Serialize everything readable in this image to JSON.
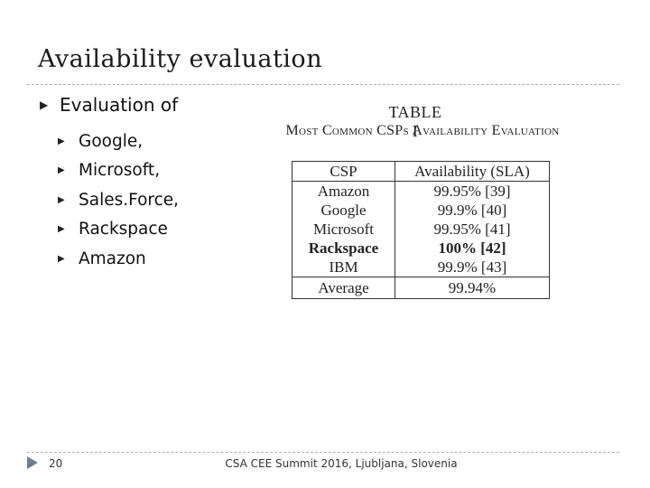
{
  "slide": {
    "title": "Availability evaluation",
    "bullet": "Evaluation of",
    "sub_items": [
      "Google,",
      "Microsoft,",
      "Sales.Force,",
      "Rackspace",
      "Amazon"
    ]
  },
  "table": {
    "caption_number": "TABLE I",
    "caption_title": "Most Common CSPs Availability Evaluation",
    "header": {
      "csp": "CSP",
      "availability": "Availability (SLA)"
    },
    "rows": [
      {
        "csp": "Amazon",
        "availability": "99.95% [39]"
      },
      {
        "csp": "Google",
        "availability": "99.9% [40]"
      },
      {
        "csp": "Microsoft",
        "availability": "99.95% [41]"
      },
      {
        "csp": "Rackspace",
        "availability": "100% [42]"
      },
      {
        "csp": "IBM",
        "availability": "99.9% [43]"
      }
    ],
    "footer": {
      "csp": "Average",
      "availability": "99.94%"
    }
  },
  "footer": {
    "page_number": "20",
    "text": "CSA CEE Summit 2016, Ljubljana, Slovenia"
  }
}
